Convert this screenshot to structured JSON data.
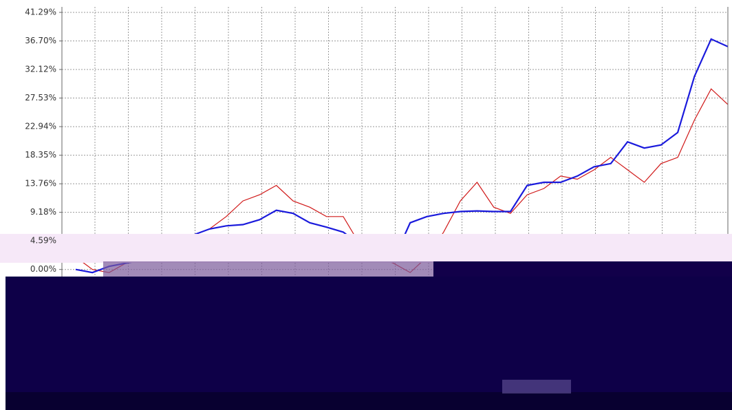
{
  "chart_data": {
    "type": "line",
    "ylim": [
      -6,
      41.29
    ],
    "yticks": [
      {
        "value": 0,
        "label": "0.00%"
      },
      {
        "value": 4.59,
        "label": "4.59%"
      },
      {
        "value": 9.18,
        "label": "9.18%"
      },
      {
        "value": 13.76,
        "label": "13.76%"
      },
      {
        "value": 18.35,
        "label": "18.35%"
      },
      {
        "value": 22.94,
        "label": "22.94%"
      },
      {
        "value": 27.53,
        "label": "27.53%"
      },
      {
        "value": 32.12,
        "label": "32.12%"
      },
      {
        "value": 36.7,
        "label": "36.70%"
      },
      {
        "value": 41.29,
        "label": "41.29%"
      }
    ],
    "grid": true,
    "series": [
      {
        "color": "#1a1adc",
        "values": [
          0,
          -0.5,
          0.5,
          1,
          1.5,
          3,
          4,
          5.5,
          6.5,
          7,
          7.2,
          8,
          9.5,
          9,
          7.5,
          6.8,
          6,
          4,
          3,
          1.5,
          7.5,
          8.5,
          9,
          9.3,
          9.4,
          9.3,
          9.3,
          13.5,
          14,
          14,
          15,
          16.5,
          17,
          20.5,
          19.5,
          20,
          22,
          31,
          37,
          35.8
        ]
      },
      {
        "color": "#d01818",
        "values": [
          2,
          0,
          -0.5,
          1,
          2,
          3,
          4,
          5.5,
          6.5,
          8.5,
          11,
          12,
          13.5,
          11,
          10,
          8.5,
          8.5,
          4,
          2,
          1,
          -0.5,
          2,
          6,
          11,
          14,
          10,
          9,
          12,
          13,
          15,
          14.5,
          16,
          18,
          16,
          14,
          17,
          18,
          24,
          29,
          26.5
        ]
      }
    ]
  }
}
